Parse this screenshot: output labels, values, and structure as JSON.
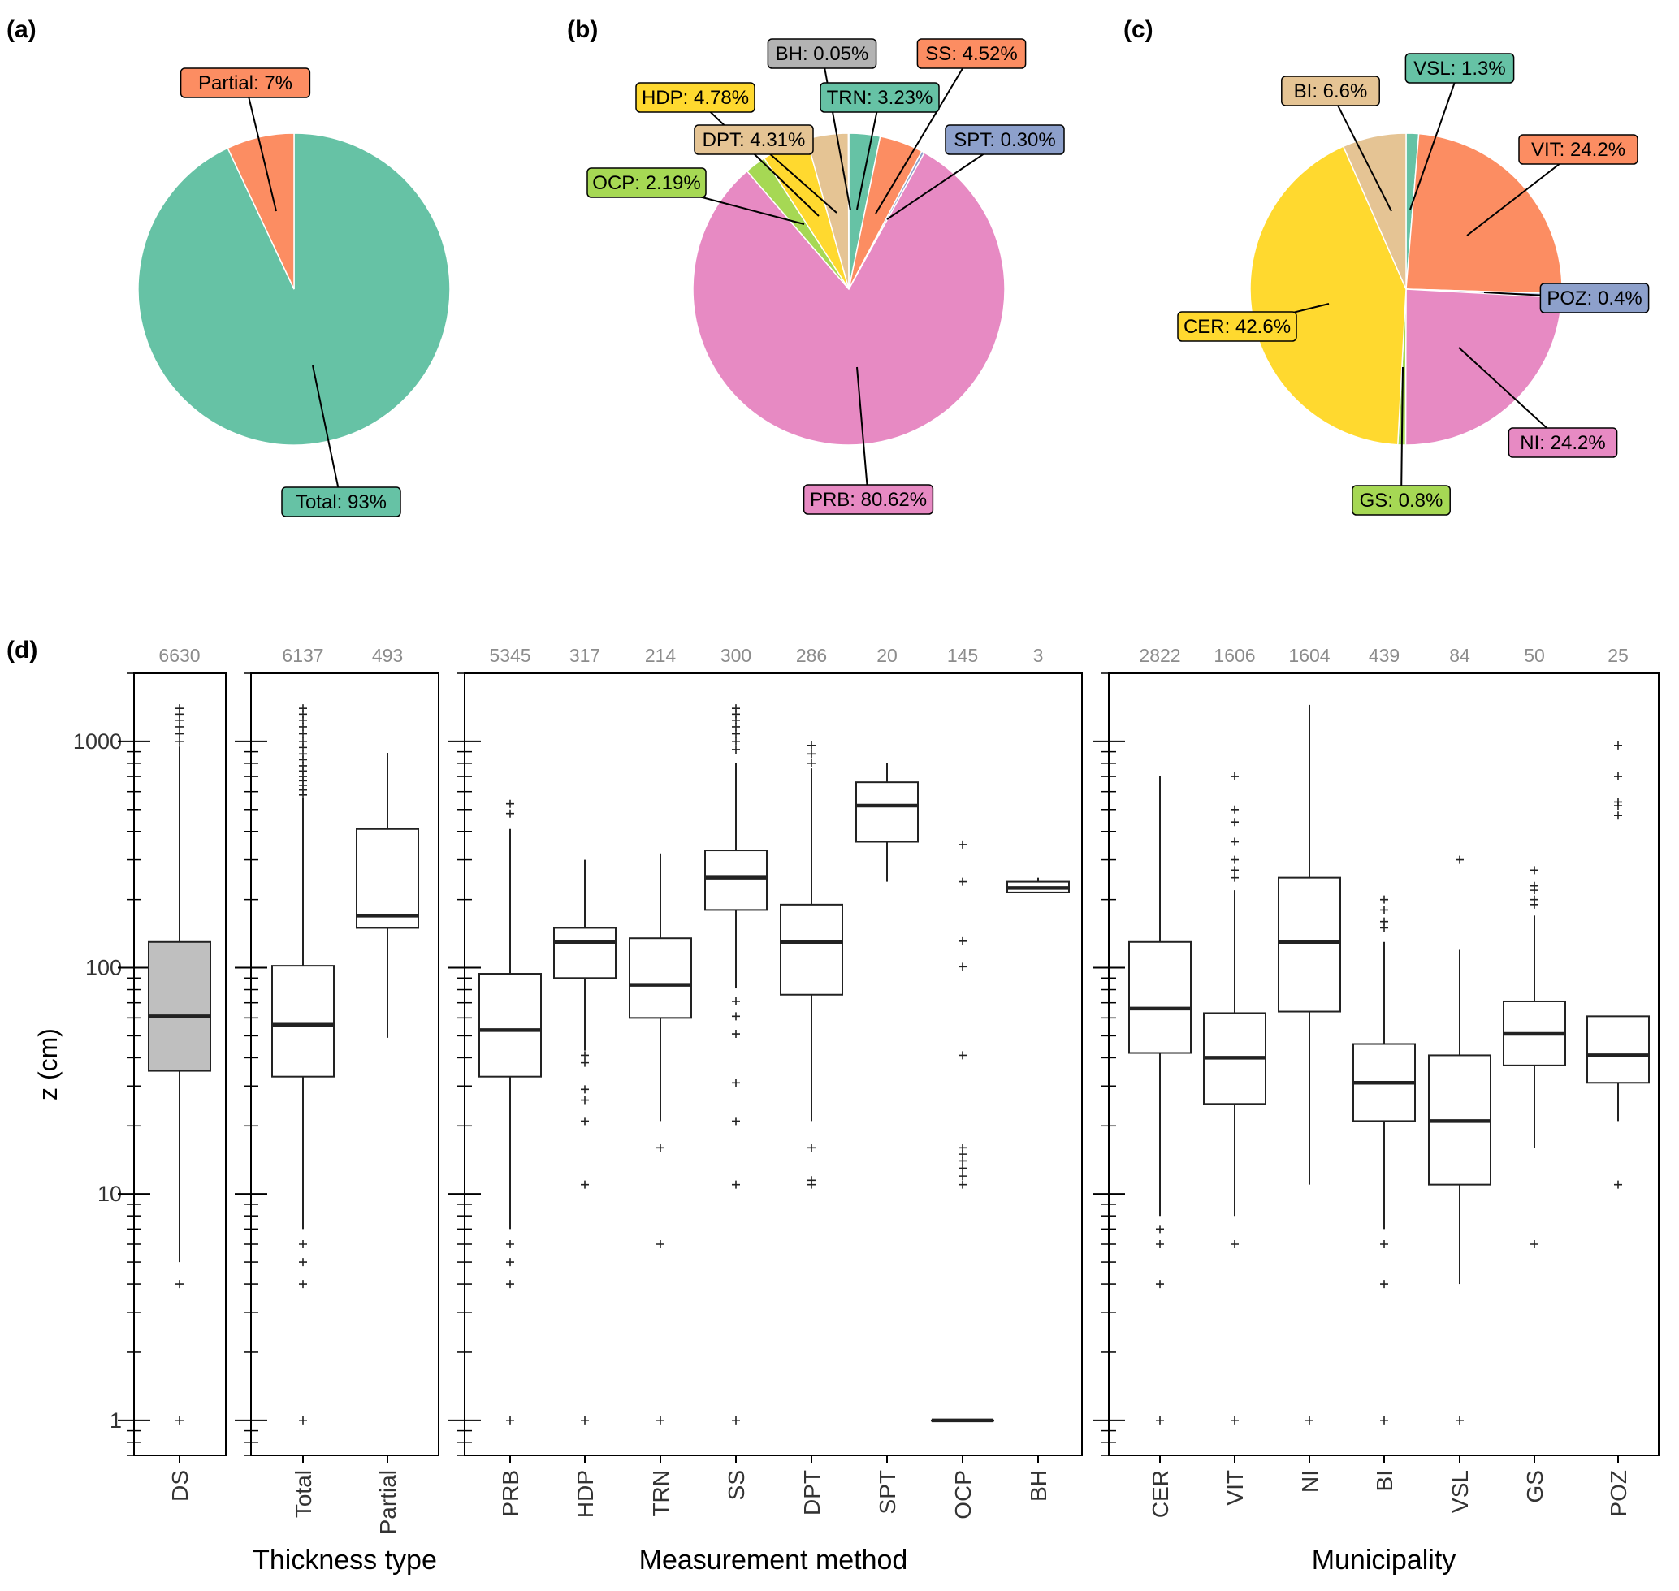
{
  "panel_labels": [
    "(a)",
    "(b)",
    "(c)",
    "(d)"
  ],
  "chart_data": [
    {
      "type": "pie",
      "panel": "(a)",
      "slices": [
        {
          "label": "Total",
          "value": 93,
          "text": "Total: 93%",
          "color": "#66c2a5"
        },
        {
          "label": "Partial",
          "value": 7,
          "text": "Partial: 7%",
          "color": "#fc8d62"
        }
      ]
    },
    {
      "type": "pie",
      "panel": "(b)",
      "slices": [
        {
          "label": "TRN",
          "value": 3.23,
          "text": "TRN: 3.23%",
          "color": "#66c2a5"
        },
        {
          "label": "SS",
          "value": 4.52,
          "text": "SS: 4.52%",
          "color": "#fc8d62"
        },
        {
          "label": "SPT",
          "value": 0.3,
          "text": "SPT: 0.30%",
          "color": "#8da0cb"
        },
        {
          "label": "PRB",
          "value": 80.62,
          "text": "PRB: 80.62%",
          "color": "#e78ac3"
        },
        {
          "label": "OCP",
          "value": 2.19,
          "text": "OCP: 2.19%",
          "color": "#a6d854"
        },
        {
          "label": "HDP",
          "value": 4.78,
          "text": "HDP: 4.78%",
          "color": "#ffd92f"
        },
        {
          "label": "DPT",
          "value": 4.31,
          "text": "DPT: 4.31%",
          "color": "#e5c494"
        },
        {
          "label": "BH",
          "value": 0.05,
          "text": "BH: 0.05%",
          "color": "#b3b3b3"
        }
      ]
    },
    {
      "type": "pie",
      "panel": "(c)",
      "slices": [
        {
          "label": "VSL",
          "value": 1.3,
          "text": "VSL: 1.3%",
          "color": "#66c2a5"
        },
        {
          "label": "VIT",
          "value": 24.2,
          "text": "VIT: 24.2%",
          "color": "#fc8d62"
        },
        {
          "label": "POZ",
          "value": 0.4,
          "text": "POZ: 0.4%",
          "color": "#8da0cb"
        },
        {
          "label": "NI",
          "value": 24.2,
          "text": "NI: 24.2%",
          "color": "#e78ac3"
        },
        {
          "label": "GS",
          "value": 0.8,
          "text": "GS: 0.8%",
          "color": "#a6d854"
        },
        {
          "label": "CER",
          "value": 42.6,
          "text": "CER: 42.6%",
          "color": "#ffd92f"
        },
        {
          "label": "BI",
          "value": 6.6,
          "text": "BI: 6.6%",
          "color": "#e5c494"
        }
      ]
    },
    {
      "type": "box",
      "panel": "(d)",
      "ylabel": "z (cm)",
      "yscale": "log",
      "ylim": [
        0.7,
        2000
      ],
      "yticks": [
        1,
        10,
        100,
        1000
      ],
      "groups": [
        {
          "title": "",
          "boxes": [
            {
              "label": "DS",
              "count": "6630",
              "fill": "#bfbfbf",
              "q1": 35,
              "median": 61,
              "q3": 130,
              "whisker_low": 5,
              "whisker_high": 950,
              "outliers": [
                1,
                4,
                1000,
                1080,
                1160,
                1240,
                1320,
                1400
              ]
            }
          ]
        },
        {
          "title": "Thickness type",
          "boxes": [
            {
              "label": "Total",
              "count": "6137",
              "q1": 33,
              "median": 56,
              "q3": 102,
              "whisker_low": 7,
              "whisker_high": 560,
              "outliers": [
                1,
                4,
                5,
                6,
                580,
                610,
                640,
                670,
                700,
                740,
                780,
                830,
                880,
                940,
                1000,
                1080,
                1160,
                1240,
                1320,
                1400
              ]
            },
            {
              "label": "Partial",
              "count": "493",
              "q1": 150,
              "median": 170,
              "q3": 410,
              "whisker_low": 49,
              "whisker_high": 890,
              "outliers": []
            }
          ]
        },
        {
          "title": "Measurement method",
          "boxes": [
            {
              "label": "PRB",
              "count": "5345",
              "q1": 33,
              "median": 53,
              "q3": 94,
              "whisker_low": 7,
              "whisker_high": 410,
              "outliers": [
                1,
                4,
                5,
                6,
                480,
                530
              ]
            },
            {
              "label": "HDP",
              "count": "317",
              "q1": 90,
              "median": 130,
              "q3": 150,
              "whisker_low": 43,
              "whisker_high": 300,
              "outliers": [
                1,
                11,
                21,
                26,
                29,
                38,
                41
              ]
            },
            {
              "label": "TRN",
              "count": "214",
              "q1": 60,
              "median": 84,
              "q3": 135,
              "whisker_low": 21,
              "whisker_high": 320,
              "outliers": [
                1,
                6,
                16
              ]
            },
            {
              "label": "SS",
              "count": "300",
              "q1": 180,
              "median": 250,
              "q3": 330,
              "whisker_low": 81,
              "whisker_high": 800,
              "outliers": [
                1,
                11,
                21,
                31,
                51,
                61,
                71,
                920,
                1000,
                1080,
                1160,
                1240,
                1320,
                1400
              ]
            },
            {
              "label": "DPT",
              "count": "286",
              "q1": 76,
              "median": 130,
              "q3": 190,
              "whisker_low": 21,
              "whisker_high": 760,
              "outliers": [
                11,
                11.5,
                16,
                800,
                880,
                960
              ]
            },
            {
              "label": "SPT",
              "count": "20",
              "q1": 360,
              "median": 520,
              "q3": 660,
              "whisker_low": 240,
              "whisker_high": 800,
              "outliers": []
            },
            {
              "label": "OCP",
              "count": "145",
              "q1": 1,
              "median": 1,
              "q3": 1,
              "whisker_low": 1,
              "whisker_high": 1,
              "outliers": [
                11,
                12,
                13,
                14,
                15,
                16,
                41,
                101,
                131,
                240,
                350
              ]
            },
            {
              "label": "BH",
              "count": "3",
              "q1": 215,
              "median": 225,
              "q3": 240,
              "whisker_low": 215,
              "whisker_high": 250,
              "outliers": []
            }
          ]
        },
        {
          "title": "Municipality",
          "boxes": [
            {
              "label": "CER",
              "count": "2822",
              "q1": 42,
              "median": 66,
              "q3": 130,
              "whisker_low": 8,
              "whisker_high": 700,
              "outliers": [
                1,
                4,
                6,
                7
              ]
            },
            {
              "label": "VIT",
              "count": "1606",
              "q1": 25,
              "median": 40,
              "q3": 63,
              "whisker_low": 8,
              "whisker_high": 220,
              "outliers": [
                1,
                6,
                250,
                270,
                300,
                360,
                440,
                500,
                700
              ]
            },
            {
              "label": "NI",
              "count": "1604",
              "q1": 64,
              "median": 130,
              "q3": 250,
              "whisker_low": 11,
              "whisker_high": 1450,
              "outliers": [
                1
              ]
            },
            {
              "label": "BI",
              "count": "439",
              "q1": 21,
              "median": 31,
              "q3": 46,
              "whisker_low": 7,
              "whisker_high": 130,
              "outliers": [
                1,
                4,
                6,
                150,
                160,
                180,
                200
              ]
            },
            {
              "label": "VSL",
              "count": "84",
              "q1": 11,
              "median": 21,
              "q3": 41,
              "whisker_low": 4,
              "whisker_high": 120,
              "outliers": [
                1,
                300
              ]
            },
            {
              "label": "GS",
              "count": "50",
              "q1": 37,
              "median": 51,
              "q3": 71,
              "whisker_low": 16,
              "whisker_high": 170,
              "outliers": [
                6,
                190,
                200,
                220,
                230,
                270
              ]
            },
            {
              "label": "POZ",
              "count": "25",
              "q1": 31,
              "median": 41,
              "q3": 61,
              "whisker_low": 21,
              "whisker_high": 61,
              "outliers": [
                11,
                470,
                520,
                540,
                700,
                960
              ]
            }
          ]
        }
      ]
    }
  ]
}
